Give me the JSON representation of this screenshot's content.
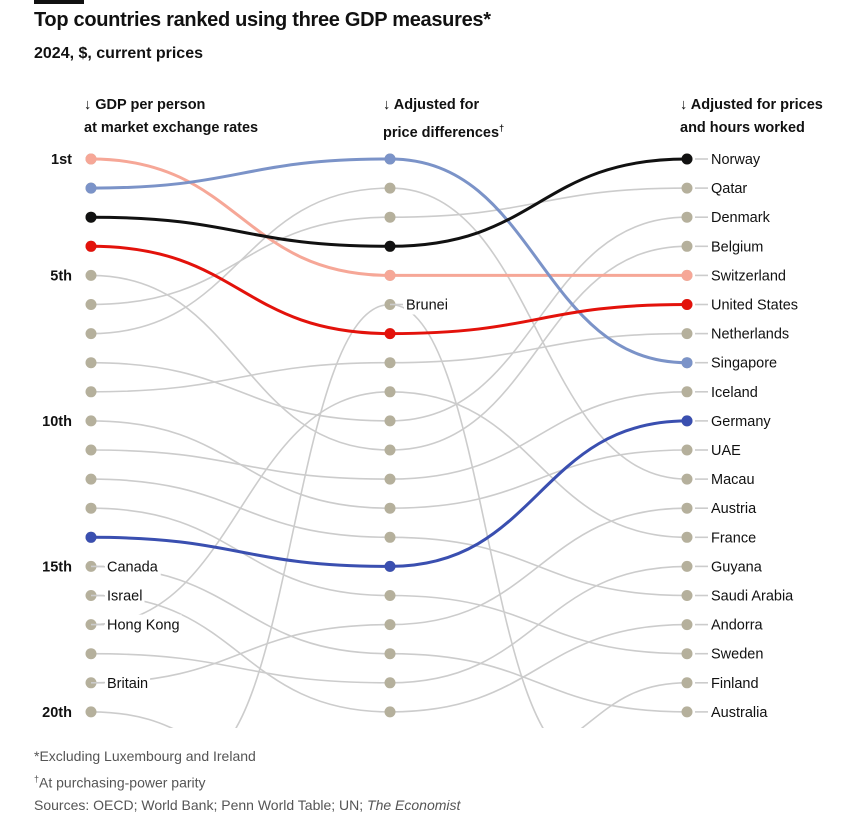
{
  "title": "Top countries ranked using three GDP measures*",
  "subtitle": "2024, $, current prices",
  "notes": {
    "n1": "*Excluding Luxembourg and Ireland",
    "n2_mark": "†",
    "n2": "At purchasing-power parity",
    "sources": "Sources: OECD; World Bank; Penn World Table; UN; ",
    "sources_italic": "The Economist"
  },
  "chart_data": {
    "type": "bump",
    "columns": [
      {
        "line1": "↓ GDP per person",
        "line2": "at market exchange rates",
        "mark": ""
      },
      {
        "line1": "↓ Adjusted for",
        "line2": "price differences",
        "mark": "†"
      },
      {
        "line1": "↓ Adjusted for prices",
        "line2": "and hours worked",
        "mark": ""
      }
    ],
    "rank_labels": [
      {
        "rank": 1,
        "text": "1st"
      },
      {
        "rank": 5,
        "text": "5th"
      },
      {
        "rank": 10,
        "text": "10th"
      },
      {
        "rank": 15,
        "text": "15th"
      },
      {
        "rank": 20,
        "text": "20th"
      }
    ],
    "col1_labels": [
      {
        "rank": 15,
        "text": "Canada"
      },
      {
        "rank": 16,
        "text": "Israel"
      },
      {
        "rank": 17,
        "text": "Hong Kong"
      },
      {
        "rank": 19,
        "text": "Britain"
      }
    ],
    "col2_labels": [
      {
        "rank": 6,
        "text": "Brunei"
      }
    ],
    "col3_labels": [
      "Norway",
      "Qatar",
      "Denmark",
      "Belgium",
      "Switzerland",
      "United States",
      "Netherlands",
      "Singapore",
      "Iceland",
      "Germany",
      "UAE",
      "Macau",
      "Austria",
      "France",
      "Guyana",
      "Saudi Arabia",
      "Andorra",
      "Sweden",
      "Finland",
      "Australia"
    ],
    "highlighted": [
      {
        "country": "Switzerland",
        "ranks": [
          1,
          5,
          5
        ],
        "color": "#f6a797"
      },
      {
        "country": "Singapore",
        "ranks": [
          2,
          1,
          8
        ],
        "color": "#7b93c8"
      },
      {
        "country": "Norway",
        "ranks": [
          3,
          4,
          1
        ],
        "color": "#111111"
      },
      {
        "country": "United States",
        "ranks": [
          4,
          7,
          6
        ],
        "color": "#e3120b"
      },
      {
        "country": "Germany",
        "ranks": [
          14,
          15,
          10
        ],
        "color": "#3a4fb0"
      }
    ],
    "grey_links_col1_col2": [
      [
        5,
        11
      ],
      [
        6,
        3
      ],
      [
        7,
        2
      ],
      [
        8,
        10
      ],
      [
        9,
        8
      ],
      [
        10,
        13
      ],
      [
        11,
        12
      ],
      [
        12,
        14
      ],
      [
        13,
        16
      ],
      [
        15,
        18
      ],
      [
        16,
        20
      ],
      [
        17,
        9
      ],
      [
        18,
        19
      ],
      [
        19,
        17
      ],
      [
        20,
        null
      ],
      [
        null,
        6
      ]
    ],
    "grey_links_col2_col3": [
      [
        2,
        12
      ],
      [
        3,
        2
      ],
      [
        8,
        7
      ],
      [
        10,
        3
      ],
      [
        11,
        4
      ],
      [
        9,
        14
      ],
      [
        12,
        9
      ],
      [
        13,
        11
      ],
      [
        14,
        16
      ],
      [
        16,
        18
      ],
      [
        17,
        13
      ],
      [
        18,
        20
      ],
      [
        19,
        15
      ],
      [
        20,
        17
      ],
      [
        6,
        null
      ],
      [
        null,
        19
      ]
    ],
    "colors": {
      "dot": "#b5b09c",
      "line": "#cccccc"
    }
  }
}
